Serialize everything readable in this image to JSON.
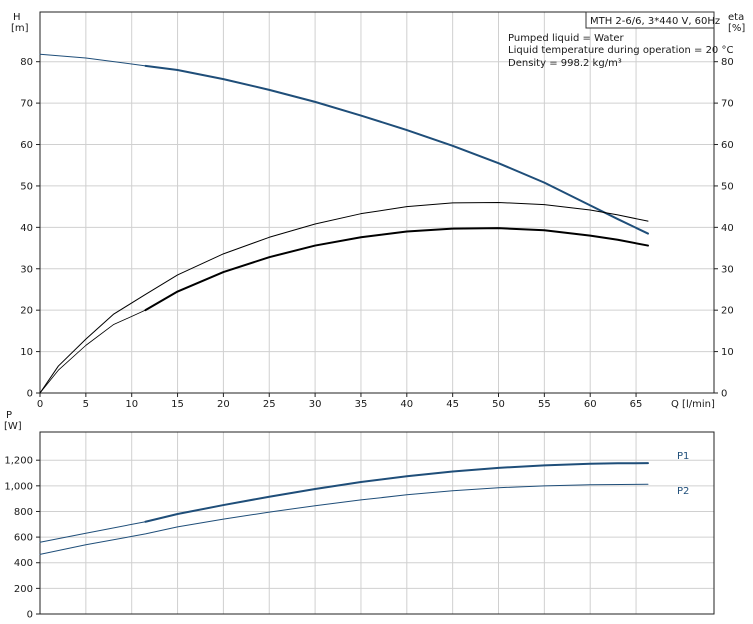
{
  "info_box": {
    "model": "MTH 2-6/6, 3*440 V, 60Hz",
    "lines": [
      "Pumped liquid = Water",
      "Liquid temperature during operation = 20 °C",
      "Density = 998.2 kg/m³"
    ]
  },
  "colors": {
    "head": "#1f4e79",
    "eta": "#000000",
    "power": "#1f4e79",
    "grid": "#d0d0d0"
  },
  "chart_data": [
    {
      "type": "line",
      "name_top": "head-efficiency",
      "x_label": "Q [l/min]",
      "y_left_label": [
        "H",
        "[m]"
      ],
      "y_right_label": [
        "eta",
        "[%]"
      ],
      "xlim": [
        0,
        73.5
      ],
      "ylim": [
        0,
        92
      ],
      "x_ticks": [
        0,
        5,
        10,
        15,
        20,
        25,
        30,
        35,
        40,
        45,
        50,
        55,
        60,
        65
      ],
      "y_ticks": [
        0,
        10,
        20,
        30,
        40,
        50,
        60,
        70,
        80
      ],
      "grid": true,
      "series": [
        {
          "key": "head",
          "thin_x": [
            0,
            5,
            11.5
          ],
          "thin_y": [
            81.8,
            80.9,
            79.0
          ],
          "bold_x": [
            11.5,
            15,
            20,
            25,
            30,
            35,
            40,
            45,
            50,
            55,
            60,
            63,
            66.3
          ],
          "bold_y": [
            79.0,
            78.0,
            75.8,
            73.2,
            70.3,
            67.0,
            63.5,
            59.7,
            55.5,
            50.8,
            45.3,
            42.0,
            38.5
          ]
        },
        {
          "key": "eta_thin",
          "x": [
            0,
            2,
            5,
            8,
            11.5,
            15,
            20,
            25,
            30,
            35,
            40,
            45,
            50,
            55,
            60,
            63,
            66.3
          ],
          "y": [
            0,
            6.5,
            13.0,
            19.0,
            23.8,
            28.5,
            33.6,
            37.6,
            40.8,
            43.3,
            45.0,
            45.9,
            46.0,
            45.5,
            44.2,
            43.0,
            41.5
          ]
        },
        {
          "key": "eta_bold",
          "thin_x": [
            0,
            2,
            5,
            8,
            11.5
          ],
          "thin_y": [
            0,
            5.5,
            11.5,
            16.5,
            20.0
          ],
          "bold_x": [
            11.5,
            15,
            20,
            25,
            30,
            35,
            40,
            45,
            50,
            55,
            60,
            63,
            66.3
          ],
          "bold_y": [
            20.0,
            24.5,
            29.2,
            32.8,
            35.6,
            37.6,
            39.0,
            39.7,
            39.8,
            39.3,
            38.0,
            37.0,
            35.6
          ]
        }
      ]
    },
    {
      "type": "line",
      "name_top": "power",
      "y_left_label": [
        "P",
        "[W]"
      ],
      "xlim": [
        0,
        73.5
      ],
      "ylim": [
        0,
        1420
      ],
      "y_ticks": [
        0,
        200,
        400,
        600,
        800,
        1000,
        1200
      ],
      "y_tick_labels": [
        "0",
        "200",
        "400",
        "600",
        "800",
        "1,000",
        "1,200"
      ],
      "grid": true,
      "series": [
        {
          "key": "P1",
          "name": "P1",
          "thin_x": [
            0,
            5,
            11.5
          ],
          "thin_y": [
            560,
            630,
            720
          ],
          "bold_x": [
            11.5,
            15,
            20,
            25,
            30,
            35,
            40,
            45,
            50,
            55,
            60,
            63,
            66.3
          ],
          "bold_y": [
            720,
            780,
            850,
            915,
            975,
            1030,
            1075,
            1112,
            1140,
            1160,
            1172,
            1176,
            1177
          ]
        },
        {
          "key": "P2",
          "name": "P2",
          "x": [
            0,
            5,
            11.5,
            15,
            20,
            25,
            30,
            35,
            40,
            45,
            50,
            55,
            60,
            66.3
          ],
          "y": [
            465,
            540,
            625,
            680,
            740,
            795,
            845,
            890,
            930,
            962,
            985,
            1000,
            1008,
            1012
          ]
        }
      ]
    }
  ]
}
